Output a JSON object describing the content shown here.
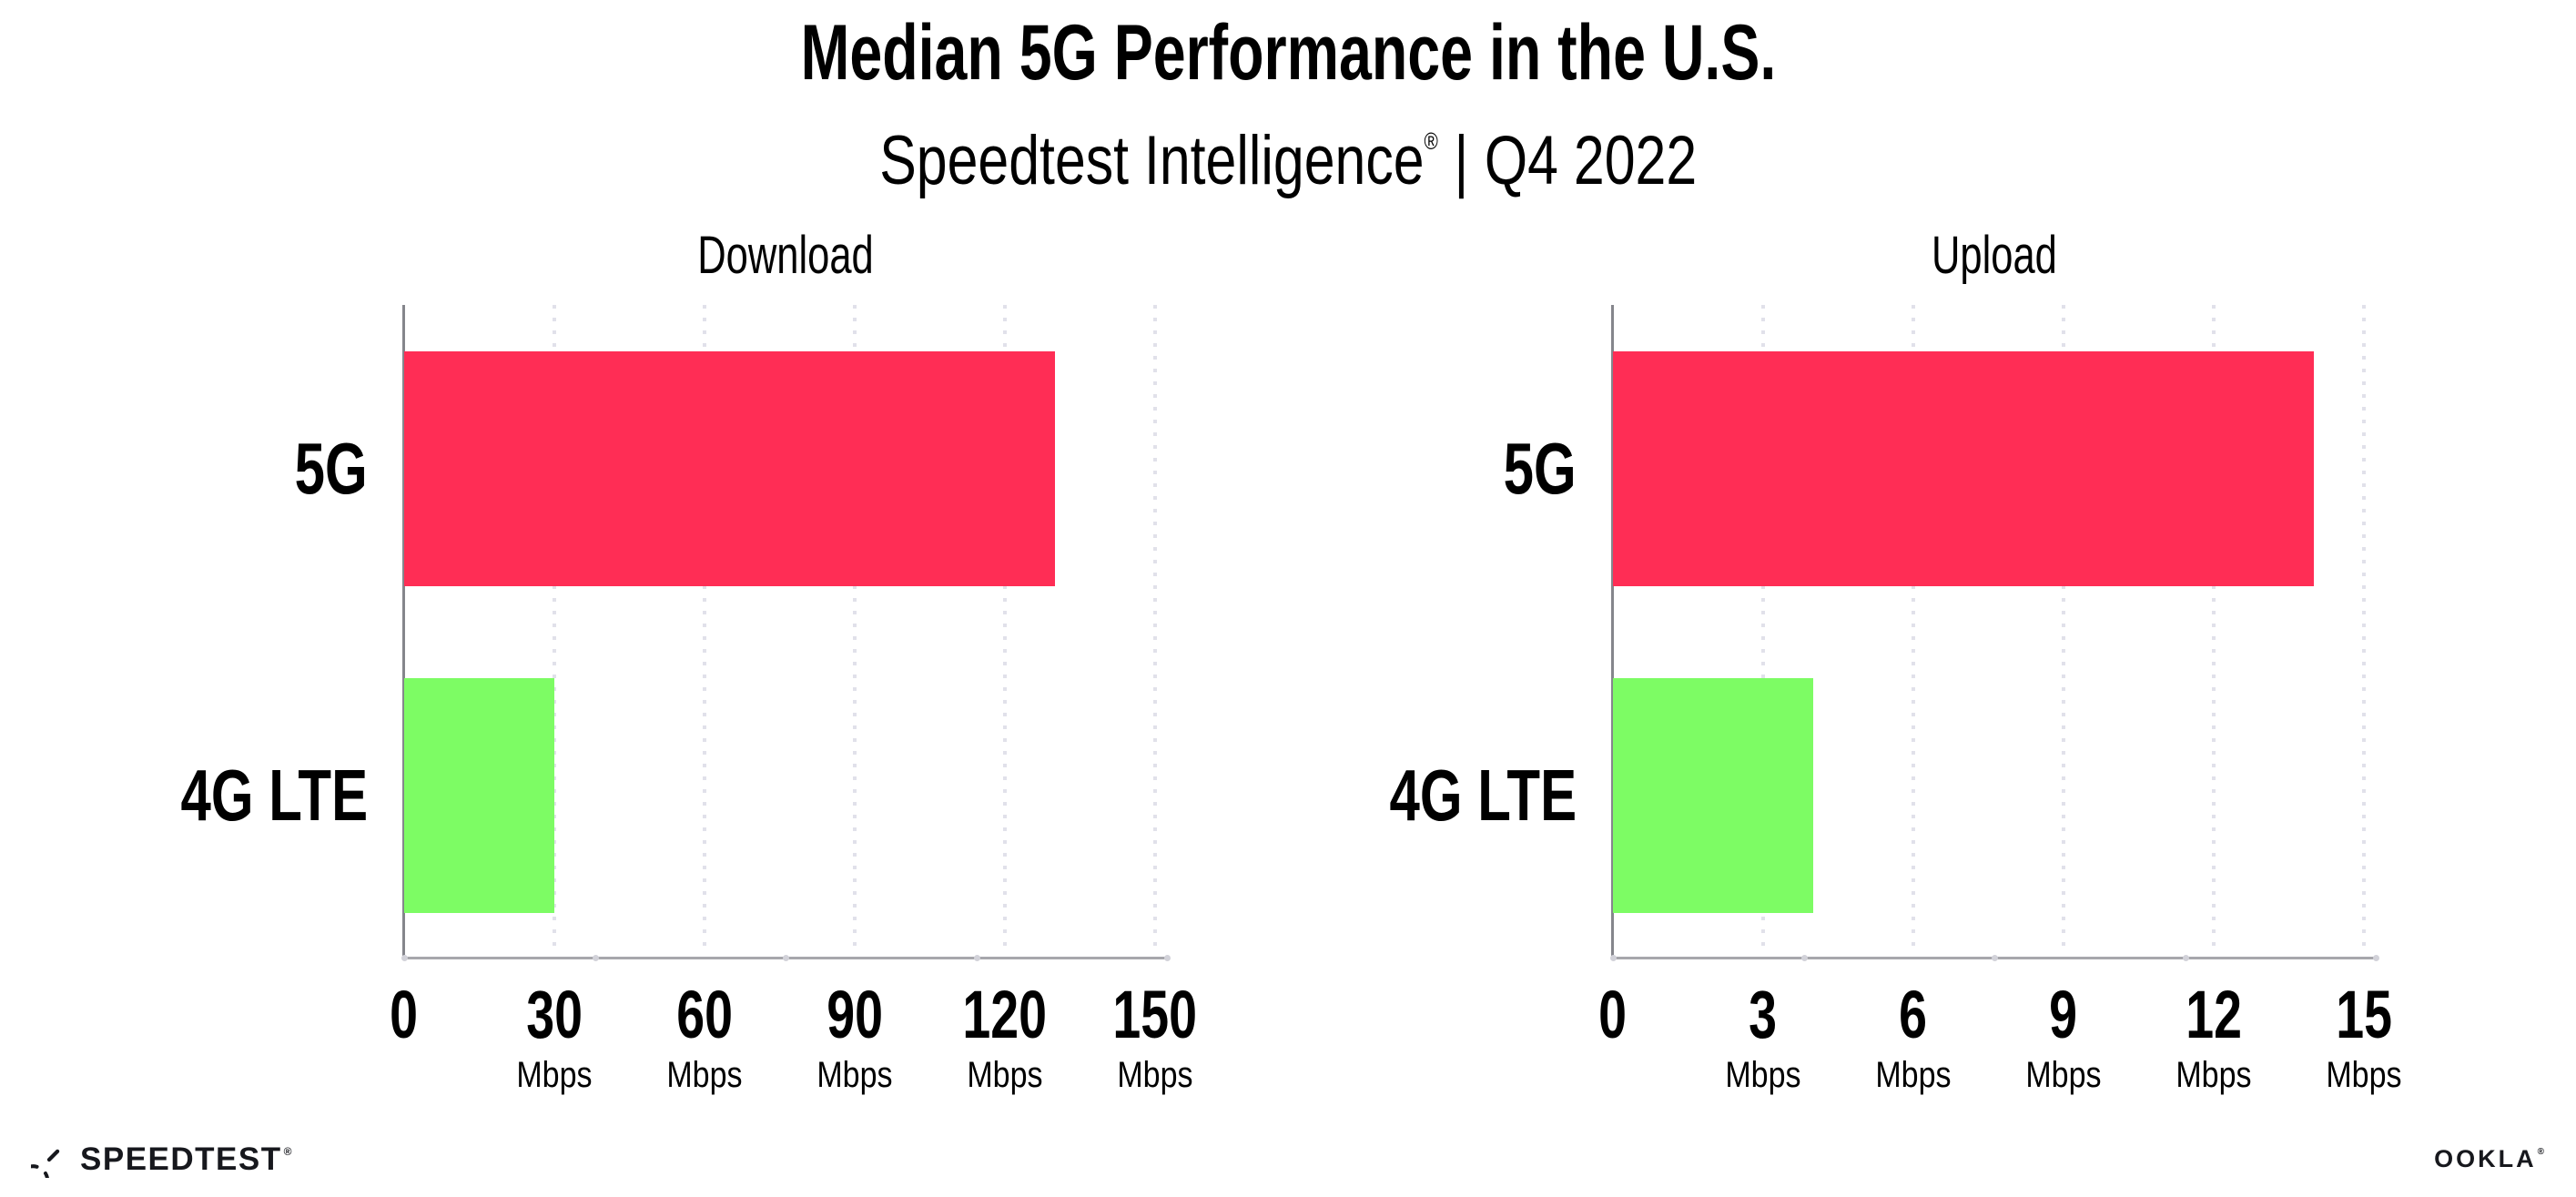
{
  "header": {
    "title": "Median 5G Performance in the U.S.",
    "subtitle_brand": "Speedtest Intelligence",
    "subtitle_reg": "®",
    "subtitle_sep": "|",
    "subtitle_period": "Q4 2022"
  },
  "footer": {
    "speedtest_label": "SPEEDTEST",
    "speedtest_reg": "®",
    "ookla_label": "OOKLA",
    "ookla_reg": "®"
  },
  "colors": {
    "bar_5g": "#FF2D55",
    "bar_4g_lte": "#7DFC64",
    "vertical_axis": "#85868c",
    "horizontal_axis": "#a7a7ac",
    "grid_dot": "#e1e1ea",
    "text": "#000000"
  },
  "chart_data": [
    {
      "type": "bar",
      "orientation": "horizontal",
      "title": "Download",
      "categories": [
        "5G",
        "4G LTE"
      ],
      "values": [
        130,
        30
      ],
      "unit": "Mbps",
      "xticks": [
        0,
        30,
        60,
        90,
        120,
        150
      ],
      "xlim": [
        0,
        150
      ],
      "bar_colors": [
        "#FF2D55",
        "#7DFC64"
      ],
      "grid": "dotted-vertical",
      "legend": "none"
    },
    {
      "type": "bar",
      "orientation": "horizontal",
      "title": "Upload",
      "categories": [
        "5G",
        "4G LTE"
      ],
      "values": [
        14,
        4
      ],
      "unit": "Mbps",
      "xticks": [
        0,
        3,
        6,
        9,
        12,
        15
      ],
      "xlim": [
        0,
        15
      ],
      "bar_colors": [
        "#FF2D55",
        "#7DFC64"
      ],
      "grid": "dotted-vertical",
      "legend": "none"
    }
  ]
}
